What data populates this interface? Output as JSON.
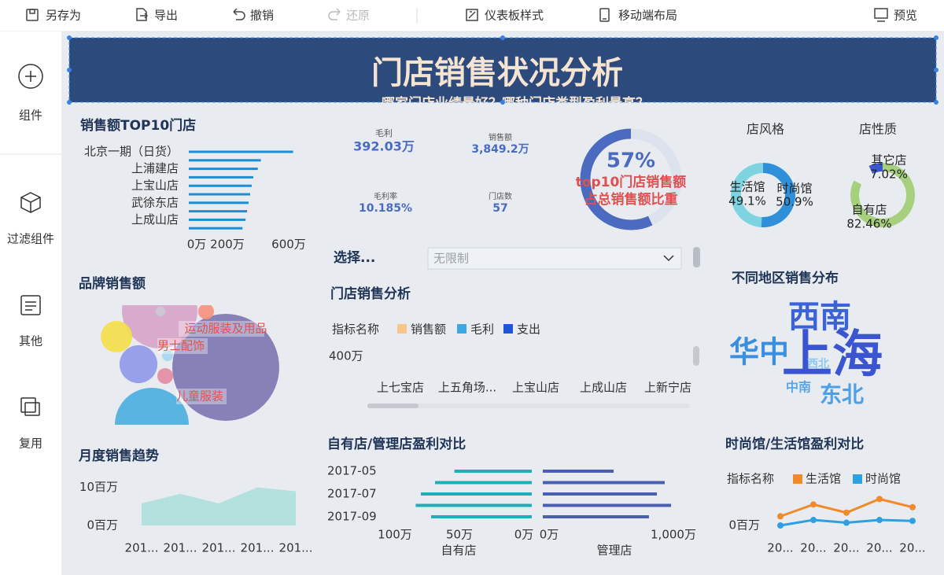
{
  "toolbar": {
    "items": [
      "另存为",
      "导出",
      "撤销",
      "还原",
      "仪表板样式",
      "移动端布局",
      "预览"
    ]
  },
  "sidebar": {
    "items": [
      "组件",
      "过滤组件",
      "其他",
      "复用"
    ]
  },
  "header": {
    "title": "门店销售状况分析",
    "subtitle": "哪家门店业绩最好？哪种门店类型盈利最高？"
  },
  "kpis": [
    {
      "label": "毛利",
      "value": "392.03万"
    },
    {
      "label": "销售额",
      "value": "3,849.2万"
    },
    {
      "label": "毛利率",
      "value": "10.185%"
    },
    {
      "label": "门店数",
      "value": "57"
    }
  ],
  "filter": {
    "label": "选择...",
    "placeholder": "无限制"
  },
  "region_cloud": {
    "title": "不同地区销售分布",
    "words": [
      "西南",
      "华中",
      "上海",
      "西北",
      "中南",
      "东北"
    ]
  },
  "chart_data": [
    {
      "type": "bar",
      "title": "销售额TOP10门店",
      "categories": [
        "北京一期（日货）",
        null,
        "上浦建店",
        null,
        "上宝山店",
        null,
        "武徐东店",
        null,
        "上成山店",
        null
      ],
      "values": [
        680,
        470,
        450,
        420,
        410,
        400,
        390,
        380,
        370,
        350
      ],
      "color": "#1b8fd6",
      "xlim": [
        0,
        700
      ],
      "xticks": [
        {
          "value": 0,
          "label": "0万"
        },
        {
          "value": 200,
          "label": "200万"
        },
        {
          "value": 600,
          "label": "600万"
        }
      ]
    },
    {
      "type": "gauge",
      "value": 57,
      "value_label": "57%",
      "label": [
        "top10门店销售额",
        "占总销售额比重"
      ],
      "color": "#4a6bbf",
      "ylim": [
        0,
        100
      ]
    },
    {
      "type": "pie",
      "title": "店风格",
      "categories": [
        "生活馆",
        "时尚馆"
      ],
      "values": [
        49.1,
        50.9
      ],
      "value_labels": [
        "49.1%",
        "50.9%"
      ],
      "colors": [
        "#7dd4e0",
        "#2f8fd8"
      ]
    },
    {
      "type": "pie",
      "title": "店性质",
      "categories": [
        "其它店",
        "自有店"
      ],
      "values": [
        7.02,
        82.46
      ],
      "value_labels": [
        "7.02%",
        "82.46%"
      ],
      "colors": [
        "#3a57d0",
        "#a6d07e"
      ]
    },
    {
      "type": "bar",
      "title": "门店销售分析",
      "legend_title": "指标名称",
      "categories": [
        "上七宝店",
        "上五角场...",
        "上宝山店",
        "上成山店",
        "上新宁店"
      ],
      "series": [
        {
          "name": "销售额",
          "color": "#f9c589"
        },
        {
          "name": "毛利",
          "color": "#3ca7e2"
        },
        {
          "name": "支出",
          "color": "#1d55d6"
        }
      ],
      "ylim": [
        0,
        400
      ],
      "yticks": [
        {
          "value": 400,
          "label": "400万"
        }
      ]
    },
    {
      "type": "bubble",
      "title": "品牌销售额",
      "categories": [
        null,
        "运动服装及用品",
        "儿童服装",
        "男士配饰",
        null,
        null,
        null,
        null,
        null
      ],
      "values": [
        462,
        230,
        221,
        58,
        40,
        10,
        10,
        5,
        4
      ],
      "colors": [
        "#7b77b1",
        "#d8a3c9",
        "#4aaee0",
        "#8f98e8",
        "#f5de48",
        "#e48aa0",
        "#f6907c",
        "#a8d5ee",
        "#c9c9d4"
      ]
    },
    {
      "type": "area",
      "title": "月度销售趋势",
      "categories": [
        "201...",
        "201...",
        "201...",
        "201...",
        "201..."
      ],
      "values": [
        5.8,
        8.3,
        5.8,
        10,
        9
      ],
      "color": "#b3e1dd",
      "ylim": [
        0,
        12
      ],
      "yticks": [
        {
          "value": 0,
          "label": "0百万"
        },
        {
          "value": 10,
          "label": "10百万"
        }
      ]
    },
    {
      "type": "bar",
      "title": "自有店/管理店盈利对比",
      "categories": [
        "2017-05",
        null,
        "2017-07",
        null,
        "2017-09"
      ],
      "series": [
        {
          "name": "自有店",
          "color": "#20afb8",
          "values": [
            60,
            75,
            86,
            90,
            78
          ],
          "xlim": [
            0,
            110
          ],
          "xticks": [
            {
              "value": 0,
              "label": "0万"
            },
            {
              "value": 50,
              "label": "50万"
            },
            {
              "value": 100,
              "label": "100万"
            }
          ]
        },
        {
          "name": "管理店",
          "color": "#4b5fb0",
          "values": [
            570,
            981,
            918,
            1032,
            854
          ],
          "xlim": [
            0,
            1100
          ],
          "xticks": [
            {
              "value": 0,
              "label": "0万"
            },
            {
              "value": 1000,
              "label": "1,000万"
            }
          ]
        }
      ]
    },
    {
      "type": "line",
      "title": "时尚馆/生活馆盈利对比",
      "legend_title": "指标名称",
      "categories": [
        "20...",
        "20...",
        "20...",
        "20...",
        "20..."
      ],
      "series": [
        {
          "name": "生活馆",
          "color": "#f08a2b",
          "values": [
            1.0,
            2.3,
            1.4,
            2.9,
            2.0
          ]
        },
        {
          "name": "时尚馆",
          "color": "#2e9fe0",
          "values": [
            0,
            0.6,
            0.3,
            0.6,
            0.5
          ]
        }
      ],
      "ylim": [
        0,
        5
      ],
      "yticks": [
        {
          "value": 0,
          "label": "0百万"
        }
      ]
    }
  ]
}
